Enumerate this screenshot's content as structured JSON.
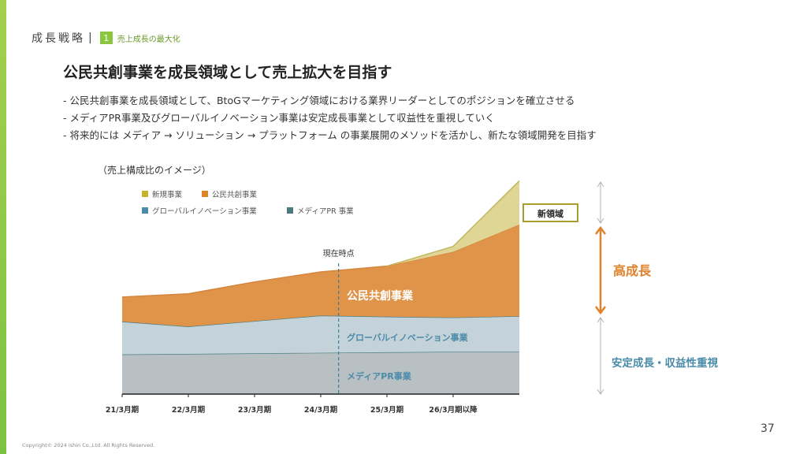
{
  "header": {
    "section_title": "成長戦略",
    "separator": "|",
    "badge_number": "1",
    "subsection": "売上成長の最大化"
  },
  "main_title": "公民共創事業を成長領域として売上拡大を目指す",
  "bullets": [
    "- 公民共創事業を成長領域として、BtoGマーケティング領域における業界リーダーとしてのポジションを確立させる",
    "- メディアPR事業及びグローバルイノベーション事業は安定成長事業として収益性を重視していく",
    "- 将来的には メディア → ソリューション → プラットフォーム の事業展開のメソッドを活かし、新たな領域開発を目指す"
  ],
  "chart_caption": "（売上構成比のイメージ）",
  "chart_data": {
    "type": "area",
    "stacked": true,
    "y_axis_numbers_shown": false,
    "categories": [
      "21/3月期",
      "22/3月期",
      "23/3月期",
      "24/3月期",
      "25/3月期",
      "26/3月期以降"
    ],
    "x": [
      21,
      22,
      23,
      24,
      25,
      26,
      27
    ],
    "series": [
      {
        "name": "メディアPR 事業",
        "values": [
          14.5,
          14.7,
          14.9,
          15.1,
          15.3,
          15.5,
          15.5
        ],
        "color": "#b9c0c4",
        "line": "#4a7f84"
      },
      {
        "name": "グローバルイノベーション事業",
        "values": [
          12,
          10,
          11.8,
          13.6,
          13,
          12.5,
          13
        ],
        "color": "#c4d3d9",
        "line": "#4a7f84"
      },
      {
        "name": "公民共創事業",
        "values": [
          9,
          12,
          14.3,
          16,
          18.5,
          24,
          33.5
        ],
        "color": "#e0944a",
        "line": "#d4843c"
      },
      {
        "name": "新規事業",
        "values": [
          0,
          0,
          0,
          0,
          0,
          2,
          16
        ],
        "color": "#dfd594",
        "line": "#c0b45a"
      }
    ],
    "legend": [
      {
        "name": "新規事業",
        "color": "#c9b32c"
      },
      {
        "name": "公民共創事業",
        "color": "#e0822a"
      },
      {
        "name": "グローバルイノベーション事業",
        "color": "#4a8ba8"
      },
      {
        "name": "メディアPR 事業",
        "color": "#4a7a80"
      }
    ],
    "area_labels": {
      "koumin": "公民共創事業",
      "global": "グローバルイノベーション事業",
      "media": "メディアPR事業",
      "new_area": "新領域"
    },
    "current_marker": {
      "label": "現在時点",
      "x": 24.27
    },
    "side_labels": {
      "high_growth": "高成長",
      "stable": "安定成長・収益性重視"
    },
    "ylim": [
      0,
      80
    ]
  },
  "page_number": "37",
  "copyright": "Copyright© 2024 ishin Co.,Ltd. All Rights Reserved."
}
